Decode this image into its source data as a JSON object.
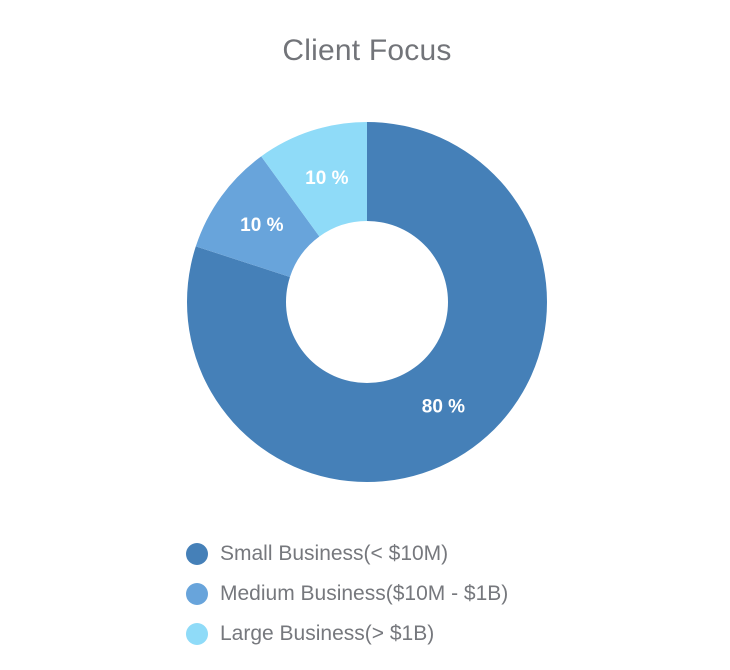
{
  "chart_data": {
    "type": "pie",
    "variant": "donut",
    "title": "Client Focus",
    "slices": [
      {
        "name": "Small Business(< $10M)",
        "value": 80,
        "label": "80 %",
        "color": "#4580b8"
      },
      {
        "name": "Medium Business($10M - $1B)",
        "value": 10,
        "label": "10 %",
        "color": "#68a4db"
      },
      {
        "name": "Large Business(> $1B)",
        "value": 10,
        "label": "10 %",
        "color": "#8fdbf8"
      }
    ],
    "legend_position": "bottom"
  }
}
